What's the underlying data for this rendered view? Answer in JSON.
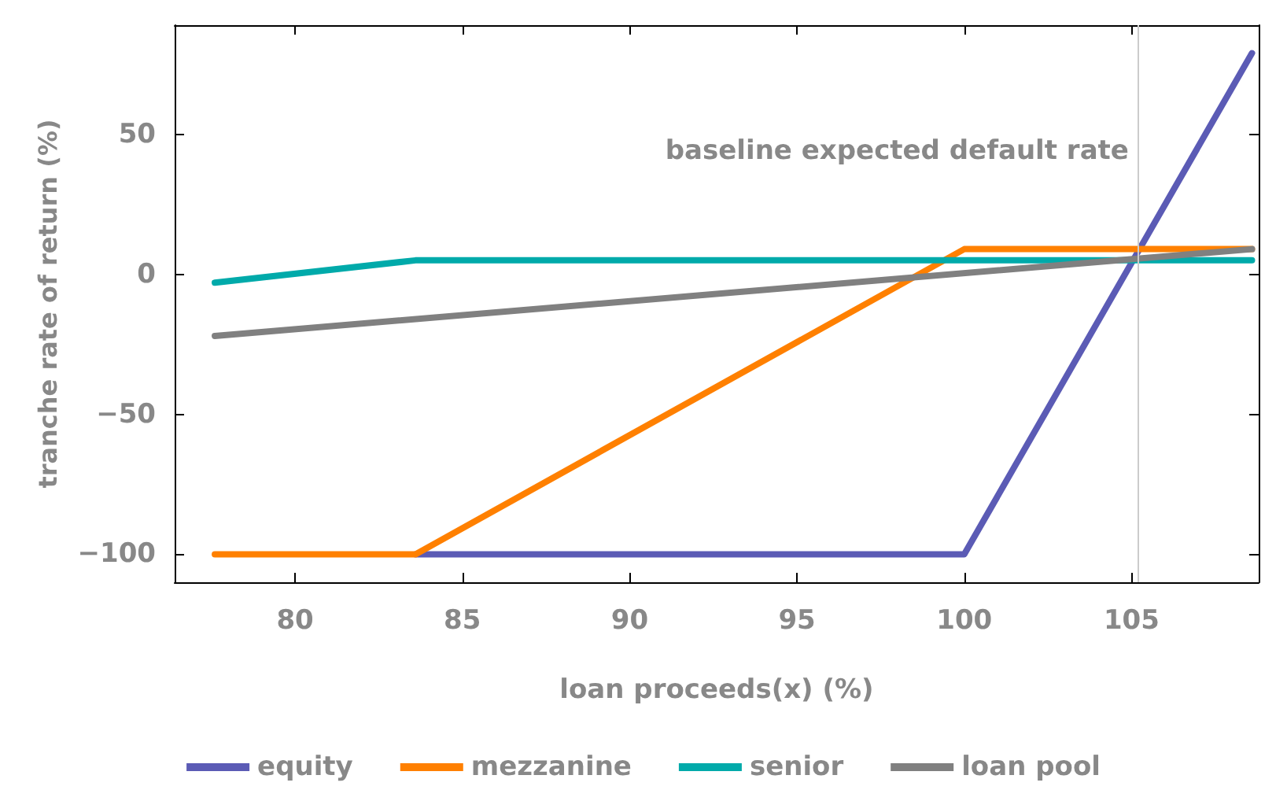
{
  "chart_data": {
    "type": "line",
    "xlabel": "loan proceeds(x) (%)",
    "ylabel": "tranche rate of return (%)",
    "xlim": [
      76.4,
      108.8
    ],
    "xticks": [
      80,
      85,
      90,
      95,
      100,
      105
    ],
    "ylim": [
      -110,
      89
    ],
    "yticks": [
      -100,
      -50,
      0,
      50
    ],
    "series": [
      {
        "name": "equity",
        "color": "#5b5bb5",
        "x": [
          83.6,
          100,
          108.6
        ],
        "values": [
          -100,
          -100,
          79
        ]
      },
      {
        "name": "mezzanine",
        "color": "#ff8000",
        "x": [
          77.6,
          83.6,
          100,
          108.6
        ],
        "values": [
          -100,
          -100,
          9,
          9
        ]
      },
      {
        "name": "senior",
        "color": "#00aaaa",
        "x": [
          77.6,
          83.6,
          108.6
        ],
        "values": [
          -3,
          5,
          5
        ]
      },
      {
        "name": "loan pool",
        "color": "#808080",
        "x": [
          77.6,
          108.6
        ],
        "values": [
          -22,
          9
        ]
      }
    ],
    "ref_lines": [
      {
        "axis": "x",
        "value": 105.2,
        "label": "baseline expected default rate",
        "color": "#cccccc"
      }
    ],
    "legend": "bottom",
    "grid": false,
    "marker": "none",
    "line_style": "solid"
  }
}
